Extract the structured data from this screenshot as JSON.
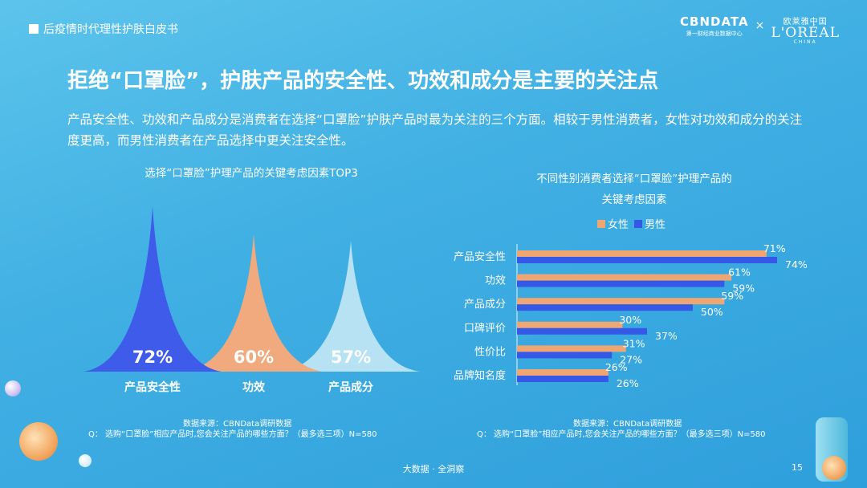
{
  "header": {
    "report_title": "后疫情时代理性护肤白皮书",
    "logo_cbn": "CBNDATA",
    "logo_cbn_sub": "第一财经商业数据中心",
    "logo_separator": "×",
    "logo_loreal_cn": "欧莱雅中国",
    "logo_loreal": "L'ORÉAL",
    "logo_loreal_sub": "CHINA"
  },
  "headline": "拒绝“口罩脸”，护肤产品的安全性、功效和成分是主要的关注点",
  "lead_text": "产品安全性、功效和产品成分是消费者在选择“口罩脸”护肤产品时最为关注的三个方面。相较于男性消费者，女性对功效和成分的关注度更高，而男性消费者在产品选择中更关注安全性。",
  "chart_data": [
    {
      "type": "area",
      "title": "选择“口罩脸”护理产品的关键考虑因素TOP3",
      "categories": [
        "产品安全性",
        "功效",
        "产品成分"
      ],
      "values": [
        72,
        60,
        57
      ],
      "value_labels": [
        "72%",
        "60%",
        "57%"
      ],
      "colors": [
        "#3f5bea",
        "#f0aa7e",
        "#b6e2f4"
      ],
      "ylim": [
        0,
        72
      ]
    },
    {
      "type": "bar",
      "orientation": "horizontal",
      "title_line1": "不同性别消费者选择“口罩脸”护理产品的",
      "title_line2": "关键考虑因素",
      "categories": [
        "产品安全性",
        "功效",
        "产品成分",
        "口碑评价",
        "性价比",
        "品牌知名度"
      ],
      "series": [
        {
          "name": "女性",
          "color": "#f0a673",
          "values": [
            71,
            61,
            59,
            30,
            31,
            26
          ],
          "labels": [
            "71%",
            "61%",
            "59%",
            "30%",
            "31%",
            "26%"
          ]
        },
        {
          "name": "男性",
          "color": "#3658e6",
          "values": [
            74,
            59,
            50,
            37,
            27,
            26
          ],
          "labels": [
            "74%",
            "59%",
            "50%",
            "37%",
            "27%",
            "26%"
          ]
        }
      ],
      "xlim": [
        0,
        74
      ],
      "legend": "top"
    }
  ],
  "sources": {
    "left_line1": "数据来源：CBNData调研数据",
    "left_line2": "Q： 选购“口罩脸”相应产品时,您会关注产品的哪些方面？（最多选三项）N=580",
    "right_line1": "数据来源：CBNData调研数据",
    "right_line2": "Q： 选购“口罩脸”相应产品时,您会关注产品的哪些方面？（最多选三项）N=580"
  },
  "footer": "大数据 · 全洞察",
  "page_number": "15"
}
